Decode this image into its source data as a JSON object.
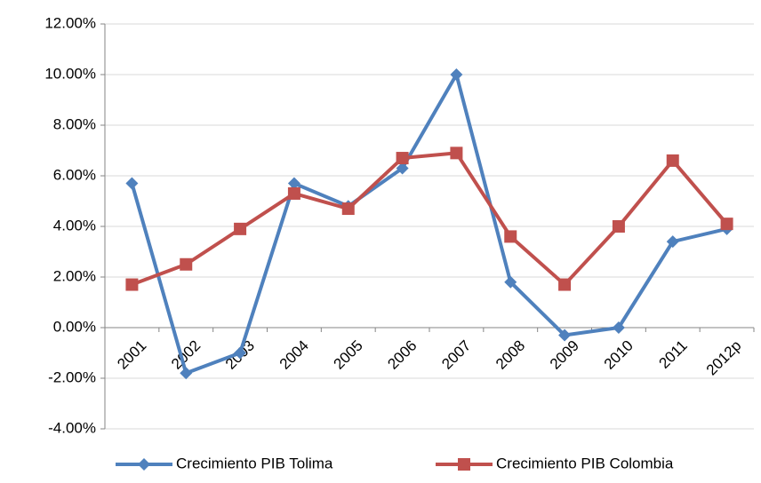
{
  "chart_data": {
    "type": "line",
    "categories": [
      "2001",
      "2002",
      "2003",
      "2004",
      "2005",
      "2006",
      "2007",
      "2008",
      "2009",
      "2010",
      "2011",
      "2012p"
    ],
    "series": [
      {
        "name": "Crecimiento PIB Tolima",
        "color": "#4f81bd",
        "marker": "diamond",
        "values": [
          5.7,
          -1.8,
          -1.0,
          5.7,
          4.8,
          6.3,
          10.0,
          1.8,
          -0.3,
          0.0,
          3.4,
          3.9
        ]
      },
      {
        "name": "Crecimiento PIB Colombia",
        "color": "#c0504d",
        "marker": "square",
        "values": [
          1.7,
          2.5,
          3.9,
          5.3,
          4.7,
          6.7,
          6.9,
          3.6,
          1.7,
          4.0,
          6.6,
          4.1
        ]
      }
    ],
    "ylim": [
      -4,
      12
    ],
    "yticks": [
      {
        "value": -4,
        "label": "-4.00%"
      },
      {
        "value": -2,
        "label": "-2.00%"
      },
      {
        "value": 0,
        "label": "0.00%"
      },
      {
        "value": 2,
        "label": "2.00%"
      },
      {
        "value": 4,
        "label": "4.00%"
      },
      {
        "value": 6,
        "label": "6.00%"
      },
      {
        "value": 8,
        "label": "8.00%"
      },
      {
        "value": 10,
        "label": "10.00%"
      },
      {
        "value": 12,
        "label": "12.00%"
      }
    ],
    "grid": true,
    "legend": "bottom"
  }
}
